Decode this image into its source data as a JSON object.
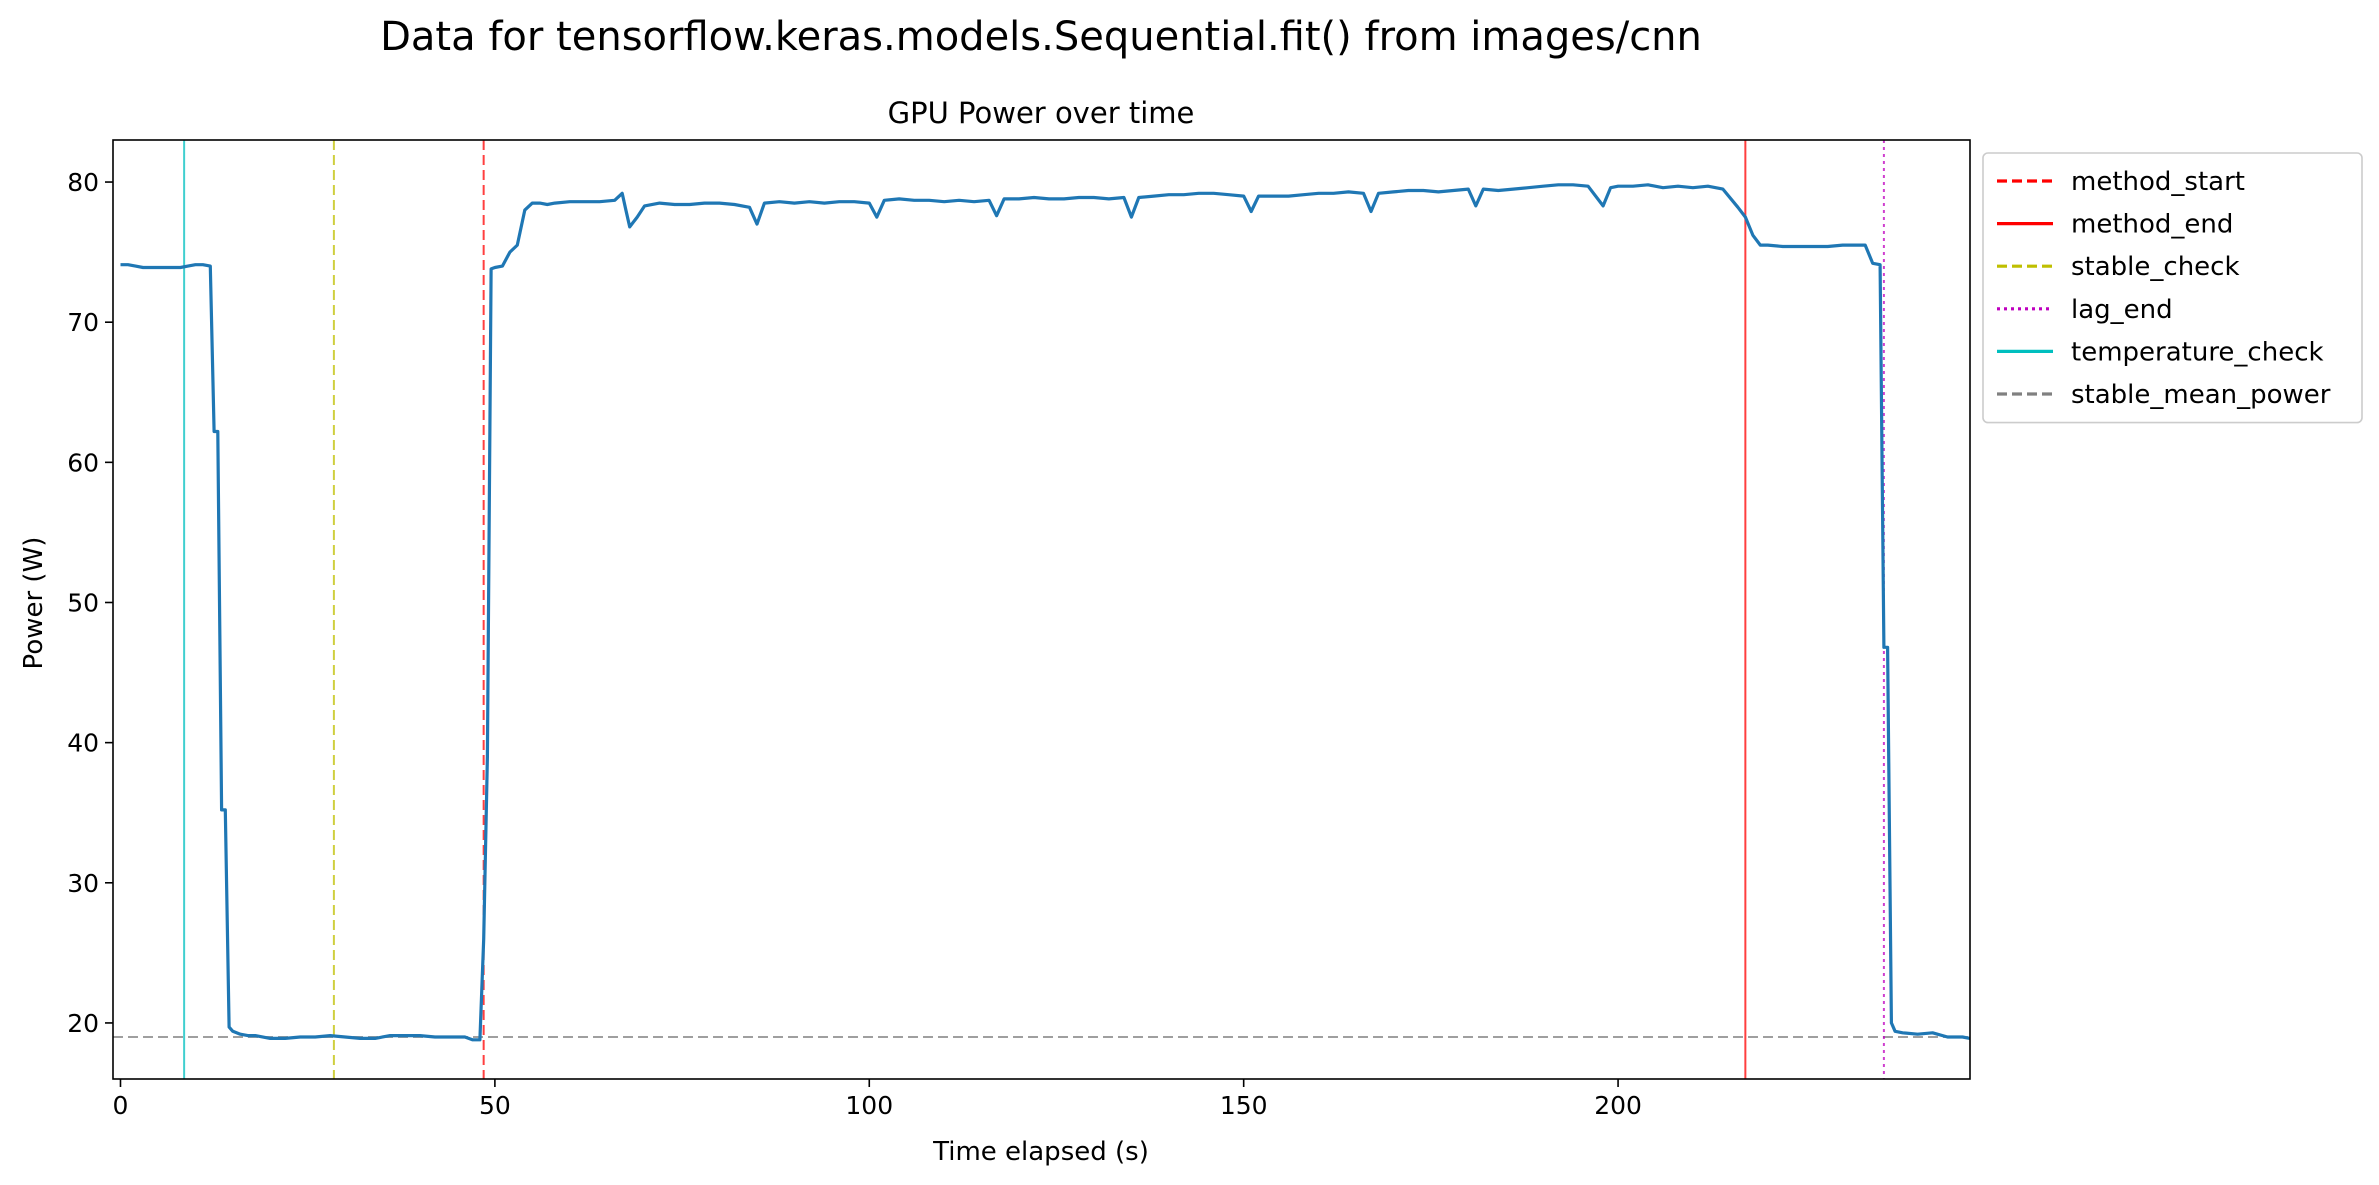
{
  "chart_data": {
    "type": "line",
    "suptitle": "Data for tensorflow.keras.models.Sequential.fit() from images/cnn",
    "title": "GPU Power over time",
    "xlabel": "Time elapsed (s)",
    "ylabel": "Power (W)",
    "xlim": [
      -1,
      247
    ],
    "ylim": [
      16,
      83
    ],
    "xticks": [
      0,
      50,
      100,
      150,
      200
    ],
    "yticks": [
      20,
      30,
      40,
      50,
      60,
      70,
      80
    ],
    "grid": false,
    "legend_position": "outside-top-right",
    "colors": {
      "series": "#1f77b4",
      "method_start": "#ff0000",
      "method_end": "#ff0000",
      "stable_check": "#bfbf00",
      "lag_end": "#bf00bf",
      "temperature_check": "#00bfbf",
      "stable_mean_power": "#808080"
    },
    "legend": [
      {
        "label": "method_start",
        "key": "method_start",
        "dash": "dashed"
      },
      {
        "label": "method_end",
        "key": "method_end",
        "dash": "solid"
      },
      {
        "label": "stable_check",
        "key": "stable_check",
        "dash": "dashed"
      },
      {
        "label": "lag_end",
        "key": "lag_end",
        "dash": "dotted"
      },
      {
        "label": "temperature_check",
        "key": "temperature_check",
        "dash": "solid"
      },
      {
        "label": "stable_mean_power",
        "key": "stable_mean_power",
        "dash": "dashed"
      }
    ],
    "vlines": [
      {
        "key": "temperature_check",
        "x": 8.5,
        "dash": "solid"
      },
      {
        "key": "stable_check",
        "x": 28.5,
        "dash": "dashed"
      },
      {
        "key": "method_start",
        "x": 48.5,
        "dash": "dashed"
      },
      {
        "key": "method_end",
        "x": 217.0,
        "dash": "solid"
      },
      {
        "key": "lag_end",
        "x": 235.5,
        "dash": "dotted"
      }
    ],
    "hlines": [
      {
        "key": "stable_mean_power",
        "y": 19.0,
        "dash": "dashed"
      }
    ],
    "series": [
      {
        "x": [
          0,
          1,
          2,
          3,
          4,
          5,
          6,
          7,
          8,
          9,
          10,
          11,
          12,
          12.5,
          13,
          13.5,
          14,
          14.5,
          15,
          16,
          17,
          18,
          20,
          22,
          24,
          26,
          28,
          30,
          32,
          34,
          36,
          38,
          40,
          42,
          44,
          46,
          47,
          48,
          48.5,
          49,
          49.5,
          50,
          51,
          52,
          53,
          54,
          55,
          56,
          57,
          58,
          60,
          62,
          64,
          66,
          67,
          67.5,
          68,
          69,
          70,
          72,
          74,
          76,
          78,
          80,
          82,
          84,
          85,
          86,
          88,
          90,
          92,
          94,
          96,
          98,
          100,
          101,
          102,
          104,
          106,
          108,
          110,
          112,
          114,
          116,
          117,
          118,
          120,
          122,
          124,
          126,
          128,
          130,
          132,
          134,
          135,
          136,
          138,
          140,
          142,
          144,
          146,
          148,
          150,
          151,
          152,
          154,
          156,
          158,
          160,
          162,
          164,
          166,
          167,
          168,
          170,
          172,
          174,
          176,
          178,
          180,
          181,
          182,
          184,
          186,
          188,
          190,
          192,
          194,
          196,
          198,
          199,
          200,
          202,
          204,
          206,
          208,
          210,
          212,
          214,
          216,
          217,
          218,
          219,
          220,
          222,
          224,
          226,
          228,
          230,
          232,
          233,
          234,
          235,
          235.5,
          236,
          236.5,
          237,
          238,
          240,
          242,
          244,
          246,
          247
        ],
        "y": [
          74.1,
          74.1,
          74.0,
          73.9,
          73.9,
          73.9,
          73.9,
          73.9,
          73.9,
          74.0,
          74.1,
          74.1,
          74.0,
          62.2,
          62.2,
          35.2,
          35.2,
          19.7,
          19.4,
          19.2,
          19.1,
          19.1,
          18.9,
          18.9,
          19.0,
          19.0,
          19.1,
          19.0,
          18.9,
          18.9,
          19.1,
          19.1,
          19.1,
          19.0,
          19.0,
          19.0,
          18.8,
          18.8,
          26.0,
          39.0,
          73.8,
          73.9,
          74.0,
          75.0,
          75.5,
          78.0,
          78.5,
          78.5,
          78.4,
          78.5,
          78.6,
          78.6,
          78.6,
          78.7,
          79.2,
          78.0,
          76.8,
          77.5,
          78.3,
          78.5,
          78.4,
          78.4,
          78.5,
          78.5,
          78.4,
          78.2,
          77.0,
          78.5,
          78.6,
          78.5,
          78.6,
          78.5,
          78.6,
          78.6,
          78.5,
          77.5,
          78.7,
          78.8,
          78.7,
          78.7,
          78.6,
          78.7,
          78.6,
          78.7,
          77.6,
          78.8,
          78.8,
          78.9,
          78.8,
          78.8,
          78.9,
          78.9,
          78.8,
          78.9,
          77.5,
          78.9,
          79.0,
          79.1,
          79.1,
          79.2,
          79.2,
          79.1,
          79.0,
          77.9,
          79.0,
          79.0,
          79.0,
          79.1,
          79.2,
          79.2,
          79.3,
          79.2,
          77.9,
          79.2,
          79.3,
          79.4,
          79.4,
          79.3,
          79.4,
          79.5,
          78.3,
          79.5,
          79.4,
          79.5,
          79.6,
          79.7,
          79.8,
          79.8,
          79.7,
          78.3,
          79.6,
          79.7,
          79.7,
          79.8,
          79.6,
          79.7,
          79.6,
          79.7,
          79.5,
          78.2,
          77.5,
          76.2,
          75.5,
          75.5,
          75.4,
          75.4,
          75.4,
          75.4,
          75.5,
          75.5,
          75.5,
          74.2,
          74.1,
          46.8,
          46.8,
          20.0,
          19.4,
          19.3,
          19.2,
          19.3,
          19.0,
          19.0,
          18.9
        ]
      }
    ]
  }
}
